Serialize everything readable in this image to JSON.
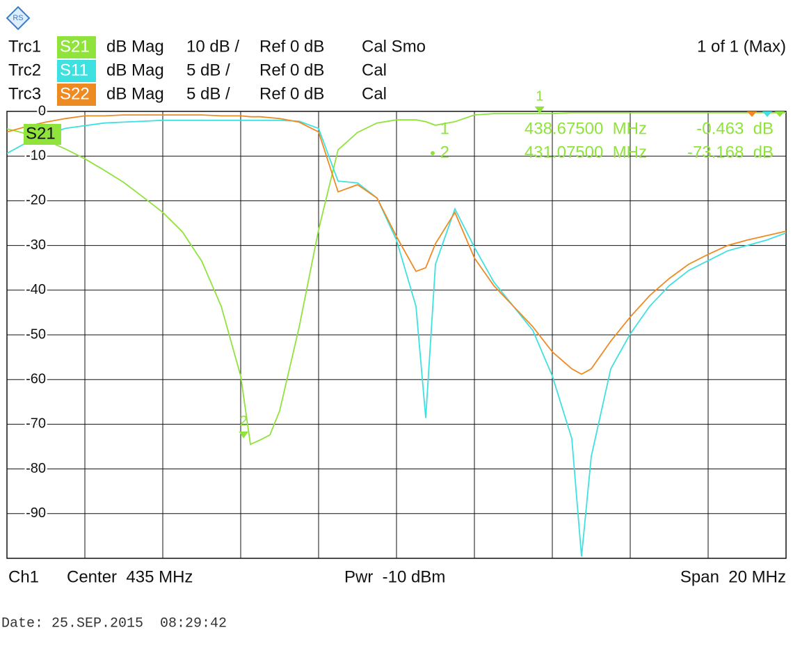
{
  "header": {
    "traces": [
      {
        "label": "Trc1",
        "format": "dB Mag",
        "scale": "10 dB /",
        "ref": "Ref 0 dB",
        "cal": "Cal Smo"
      },
      {
        "label": "Trc2",
        "format": "dB Mag",
        "scale": "5 dB /",
        "ref": "Ref 0 dB",
        "cal": "Cal"
      },
      {
        "label": "Trc3",
        "format": "dB Mag",
        "scale": "5 dB /",
        "ref": "Ref 0 dB",
        "cal": "Cal"
      }
    ],
    "sweep": "1 of 1 (Max)"
  },
  "footer": {
    "channel": "Ch1",
    "center": "Center  435 MHz",
    "power": "Pwr  -10 dBm",
    "span": "Span  20 MHz",
    "date": "Date: 25.SEP.2015  08:29:42"
  },
  "chart_data": {
    "type": "line",
    "x": [
      425,
      425.5,
      426,
      426.5,
      427,
      427.5,
      428,
      428.5,
      429,
      429.5,
      430,
      430.5,
      431,
      431.25,
      431.5,
      431.75,
      432,
      432.5,
      433,
      433.5,
      434,
      434.5,
      435,
      435.5,
      435.75,
      436,
      436.5,
      437,
      437.5,
      438,
      438.5,
      439,
      439.5,
      439.75,
      440,
      440.5,
      441,
      441.5,
      442,
      442.5,
      443,
      443.5,
      444,
      444.5,
      445
    ],
    "xlim": [
      425,
      445
    ],
    "xticks": [
      425,
      427,
      429,
      431,
      433,
      435,
      437,
      439,
      441,
      443,
      445
    ],
    "ylim": [
      -100,
      0
    ],
    "yticks": [
      0,
      -10,
      -20,
      -30,
      -40,
      -50,
      -60,
      -70,
      -80,
      -90
    ],
    "y2lim": [
      -50,
      0
    ],
    "grid": true,
    "series": [
      {
        "name": "S21",
        "color": "#8fe33c",
        "values": [
          -3.9,
          -5.0,
          -6.5,
          -8.4,
          -10.6,
          -13.2,
          -15.9,
          -19.2,
          -22.6,
          -26.9,
          -33.5,
          -43.6,
          -59.2,
          -74.5,
          -73.5,
          -72.4,
          -67,
          -48.3,
          -26.5,
          -8.6,
          -4.7,
          -2.6,
          -1.9,
          -1.9,
          -2.3,
          -3.1,
          -2.3,
          -0.8,
          -0.5,
          -0.5,
          -0.5,
          -0.5,
          -0.3,
          -0.3,
          -0.3,
          -0.3,
          -0.3,
          -0.3,
          -0.3,
          -0.3,
          -0.3,
          -0.3,
          -0.3,
          -0.3,
          -0.3
        ]
      },
      {
        "name": "S11",
        "color": "#3fe0e0",
        "axis": "y2",
        "values": [
          -4.7,
          -3.5,
          -2.6,
          -1.9,
          -1.6,
          -1.3,
          -1.2,
          -1.1,
          -1.0,
          -1.0,
          -1.0,
          -1.0,
          -1.0,
          -1.0,
          -1.0,
          -1.0,
          -1.0,
          -1.1,
          -1.9,
          -7.8,
          -8.0,
          -9.7,
          -14.4,
          -21.8,
          -34.3,
          -17.1,
          -10.9,
          -15.2,
          -19.1,
          -21.8,
          -24.5,
          -29.6,
          -36.6,
          -49.8,
          -38.6,
          -28.8,
          -24.9,
          -21.8,
          -19.5,
          -17.8,
          -16.7,
          -15.6,
          -15.0,
          -14.4,
          -13.6
        ]
      },
      {
        "name": "S22",
        "color": "#ee8a22",
        "axis": "y2",
        "values": [
          -2.3,
          -1.7,
          -1.2,
          -0.8,
          -0.5,
          -0.5,
          -0.4,
          -0.4,
          -0.4,
          -0.4,
          -0.4,
          -0.5,
          -0.5,
          -0.6,
          -0.6,
          -0.7,
          -0.8,
          -1.2,
          -2.3,
          -9.0,
          -8.2,
          -9.7,
          -14.0,
          -17.9,
          -17.5,
          -14.8,
          -11.3,
          -16.4,
          -19.5,
          -21.8,
          -24.1,
          -26.9,
          -28.8,
          -29.4,
          -28.8,
          -25.7,
          -23.0,
          -20.6,
          -18.7,
          -17.1,
          -16.0,
          -15.0,
          -14.4,
          -13.9,
          -13.4
        ]
      }
    ],
    "markers": [
      {
        "name": "1",
        "x": 438.675,
        "value": -0.463,
        "x_label": "438.67500  MHz",
        "value_label": "-0.463  dB"
      },
      {
        "name": "2",
        "x": 431.075,
        "value": -73.168,
        "x_label": "431.07500  MHz",
        "value_label": "-73.168  dB"
      }
    ]
  }
}
